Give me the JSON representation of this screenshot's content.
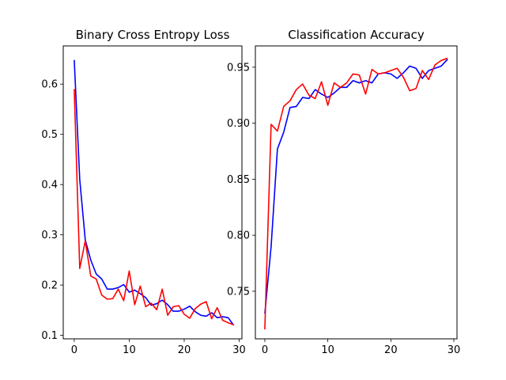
{
  "chart_data": [
    {
      "type": "line",
      "title": "Binary Cross Entropy Loss",
      "xlim": [
        -2,
        30.5
      ],
      "ylim": [
        0.093,
        0.676
      ],
      "xticks": [
        0,
        10,
        20,
        30
      ],
      "yticks": [
        0.1,
        0.2,
        0.3,
        0.4,
        0.5,
        0.6
      ],
      "xtick_labels": [
        "0",
        "10",
        "20",
        "30"
      ],
      "ytick_labels": [
        "0.1",
        "0.2",
        "0.3",
        "0.4",
        "0.5",
        "0.6"
      ],
      "grid": false,
      "series": [
        {
          "color": "#0000ff",
          "x": [
            0,
            1,
            2,
            3,
            4,
            5,
            6,
            7,
            8,
            9,
            10,
            11,
            12,
            13,
            14,
            15,
            16,
            17,
            18,
            19,
            20,
            21,
            22,
            23,
            24,
            25,
            26,
            27,
            28,
            29
          ],
          "values": [
            0.648,
            0.41,
            0.29,
            0.25,
            0.222,
            0.212,
            0.192,
            0.192,
            0.195,
            0.201,
            0.186,
            0.19,
            0.183,
            0.175,
            0.16,
            0.163,
            0.17,
            0.161,
            0.148,
            0.148,
            0.152,
            0.158,
            0.147,
            0.14,
            0.138,
            0.145,
            0.135,
            0.137,
            0.135,
            0.12
          ]
        },
        {
          "color": "#ff0000",
          "x": [
            0,
            1,
            2,
            3,
            4,
            5,
            6,
            7,
            8,
            9,
            10,
            11,
            12,
            13,
            14,
            15,
            16,
            17,
            18,
            19,
            20,
            21,
            22,
            23,
            24,
            25,
            26,
            27,
            28,
            29
          ],
          "values": [
            0.59,
            0.233,
            0.288,
            0.218,
            0.212,
            0.18,
            0.172,
            0.173,
            0.192,
            0.169,
            0.228,
            0.161,
            0.198,
            0.157,
            0.164,
            0.151,
            0.192,
            0.14,
            0.157,
            0.159,
            0.142,
            0.134,
            0.153,
            0.162,
            0.167,
            0.133,
            0.155,
            0.13,
            0.125,
            0.121
          ]
        }
      ]
    },
    {
      "type": "line",
      "title": "Classification Accuracy",
      "xlim": [
        -1.5,
        30.5
      ],
      "ylim": [
        0.7075,
        0.969
      ],
      "xticks": [
        0,
        10,
        20,
        30
      ],
      "yticks": [
        0.75,
        0.8,
        0.85,
        0.9,
        0.95
      ],
      "xtick_labels": [
        "0",
        "10",
        "20",
        "30"
      ],
      "ytick_labels": [
        "0.75",
        "0.80",
        "0.85",
        "0.90",
        "0.95"
      ],
      "grid": false,
      "series": [
        {
          "color": "#0000ff",
          "x": [
            0,
            1,
            2,
            3,
            4,
            5,
            6,
            7,
            8,
            9,
            10,
            11,
            12,
            13,
            14,
            15,
            16,
            17,
            18,
            19,
            20,
            21,
            22,
            23,
            24,
            25,
            26,
            27,
            28,
            29
          ],
          "values": [
            0.73,
            0.79,
            0.877,
            0.892,
            0.914,
            0.915,
            0.923,
            0.922,
            0.93,
            0.926,
            0.923,
            0.927,
            0.932,
            0.932,
            0.938,
            0.936,
            0.938,
            0.936,
            0.944,
            0.945,
            0.944,
            0.94,
            0.945,
            0.951,
            0.949,
            0.94,
            0.947,
            0.949,
            0.951,
            0.957
          ]
        },
        {
          "color": "#ff0000",
          "x": [
            0,
            1,
            2,
            3,
            4,
            5,
            6,
            7,
            8,
            9,
            10,
            11,
            12,
            13,
            14,
            15,
            16,
            17,
            18,
            19,
            20,
            21,
            22,
            23,
            24,
            25,
            26,
            27,
            28,
            29
          ],
          "values": [
            0.716,
            0.899,
            0.893,
            0.915,
            0.92,
            0.93,
            0.935,
            0.925,
            0.922,
            0.937,
            0.916,
            0.936,
            0.932,
            0.936,
            0.944,
            0.943,
            0.926,
            0.948,
            0.944,
            0.945,
            0.947,
            0.949,
            0.941,
            0.929,
            0.931,
            0.947,
            0.939,
            0.952,
            0.956,
            0.958
          ]
        }
      ]
    }
  ]
}
